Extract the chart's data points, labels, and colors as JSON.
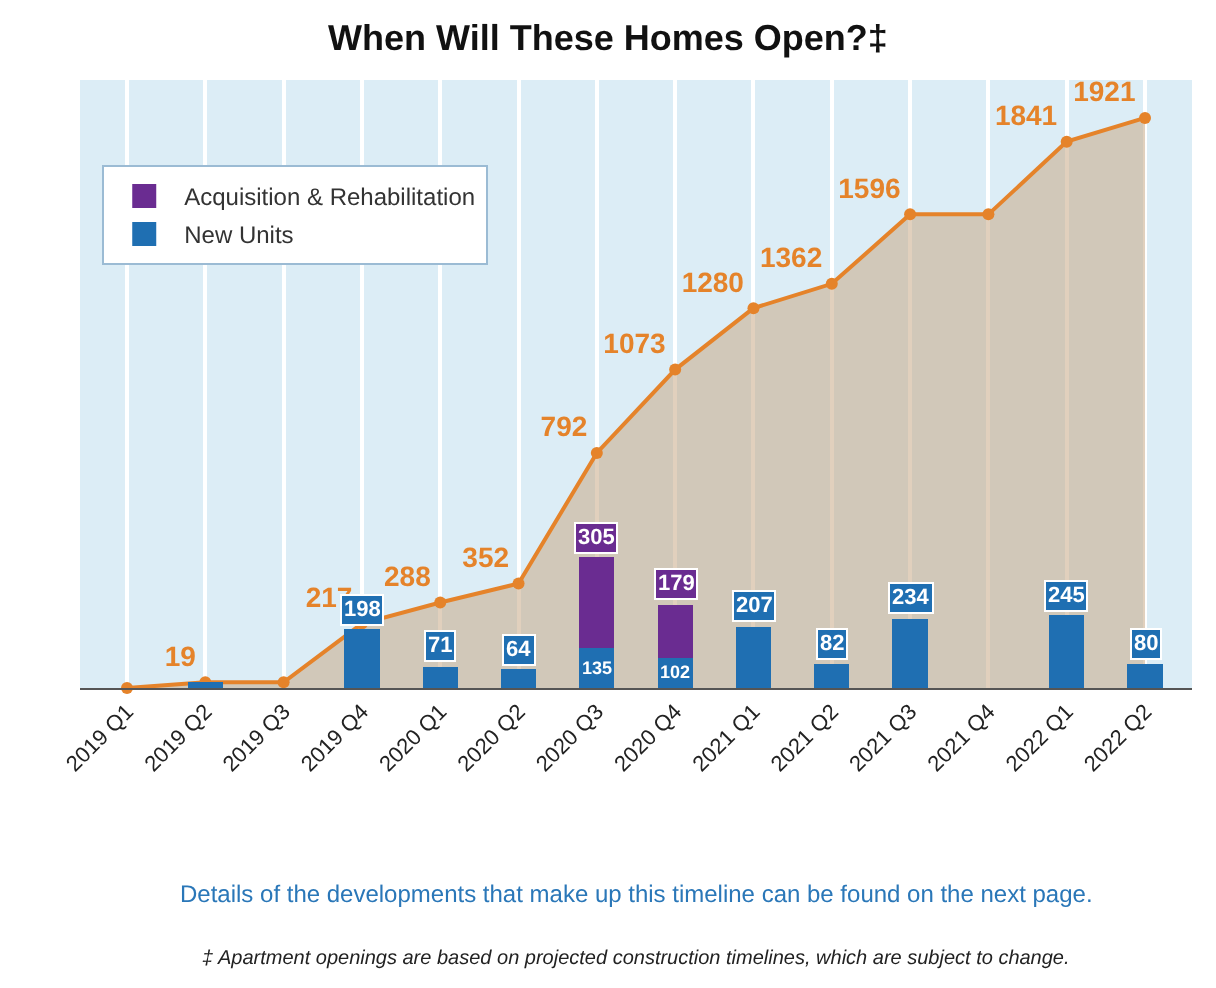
{
  "chart_data": {
    "type": "bar",
    "stacked": true,
    "title": "When Will These Homes Open?‡",
    "categories": [
      "2019 Q1",
      "2019 Q2",
      "2019 Q3",
      "2019 Q4",
      "2020 Q1",
      "2020 Q2",
      "2020 Q3",
      "2020 Q4",
      "2021 Q1",
      "2021 Q2",
      "2021 Q3",
      "2021 Q4",
      "2022 Q1",
      "2022 Q2"
    ],
    "series": [
      {
        "name": "New Units",
        "color": "#1f6fb2",
        "values": [
          0,
          19,
          0,
          198,
          71,
          64,
          135,
          102,
          207,
          82,
          234,
          0,
          245,
          80
        ],
        "value_labels": [
          null,
          null,
          null,
          "198",
          "71",
          "64",
          "135",
          "102",
          "207",
          "82",
          "234",
          null,
          "245",
          "80"
        ]
      },
      {
        "name": "Acquisition & Rehabilitation",
        "color": "#6a2c91",
        "values": [
          0,
          0,
          0,
          0,
          0,
          0,
          305,
          179,
          0,
          0,
          0,
          0,
          0,
          0
        ],
        "value_labels": [
          null,
          null,
          null,
          null,
          null,
          null,
          "305",
          "179",
          null,
          null,
          null,
          null,
          null,
          null
        ]
      },
      {
        "type": "area",
        "color": "#e5832a",
        "values": [
          0,
          19,
          19,
          217,
          288,
          352,
          792,
          1073,
          1280,
          1362,
          1596,
          1596,
          1841,
          1921
        ],
        "value_labels": [
          null,
          "19",
          null,
          "217",
          "288",
          "352",
          "792",
          "1073",
          "1280",
          "1362",
          "1596",
          null,
          "1841",
          "1921"
        ]
      }
    ],
    "legend": "top left",
    "marker": "circle",
    "grid": "x",
    "tick_labels": "x",
    "annotations": [
      "Details of the developments that make up this timeline can be found on the next page.",
      "‡ Apartment openings are based on projected construction timelines, which are subject to change."
    ]
  }
}
